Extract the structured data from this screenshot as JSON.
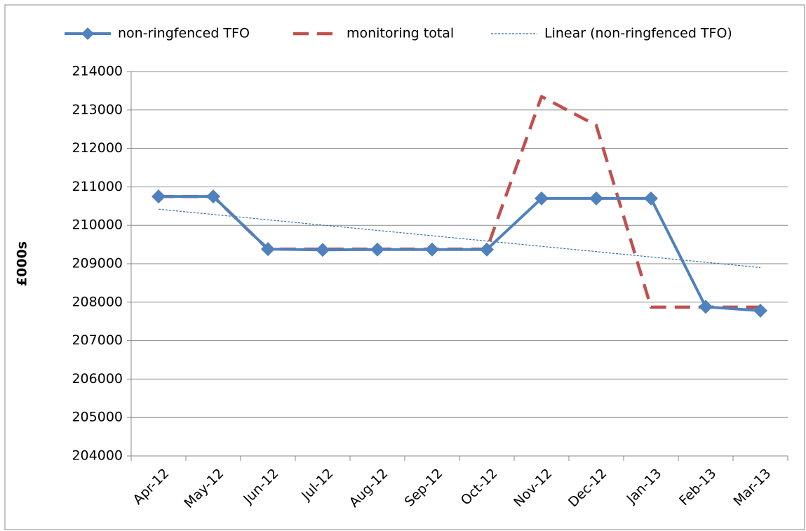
{
  "chart_data": {
    "type": "line",
    "y_label": "£000s",
    "categories": [
      "Apr-12",
      "May-12",
      "Jun-12",
      "Jul-12",
      "Aug-12",
      "Sep-12",
      "Oct-12",
      "Nov-12",
      "Dec-12",
      "Jan-13",
      "Feb-13",
      "Mar-13"
    ],
    "series": [
      {
        "name": "non-ringfenced TFO",
        "color": "#4f81bd",
        "line_style": "solid",
        "marker": "diamond",
        "values": [
          210750,
          210750,
          209380,
          209360,
          209370,
          209370,
          209370,
          210700,
          210700,
          210700,
          207880,
          207780
        ]
      },
      {
        "name": "monitoring total",
        "color": "#c0504d",
        "line_style": "dashed",
        "marker": "none",
        "values": [
          210750,
          210750,
          209380,
          209380,
          209380,
          209380,
          209380,
          213350,
          212600,
          207870,
          207870,
          207870
        ]
      },
      {
        "name": "Linear (non-ringfenced TFO)",
        "color": "#2e75a6",
        "line_style": "dotted",
        "marker": "none",
        "values": [
          210420,
          210282,
          210144,
          210005,
          209867,
          209729,
          209591,
          209453,
          209315,
          209176,
          209038,
          208900
        ]
      }
    ],
    "ylim": [
      204000,
      214000
    ],
    "yticks": [
      204000,
      205000,
      206000,
      207000,
      208000,
      209000,
      210000,
      211000,
      212000,
      213000,
      214000
    ],
    "grid": true,
    "legend": "top"
  }
}
